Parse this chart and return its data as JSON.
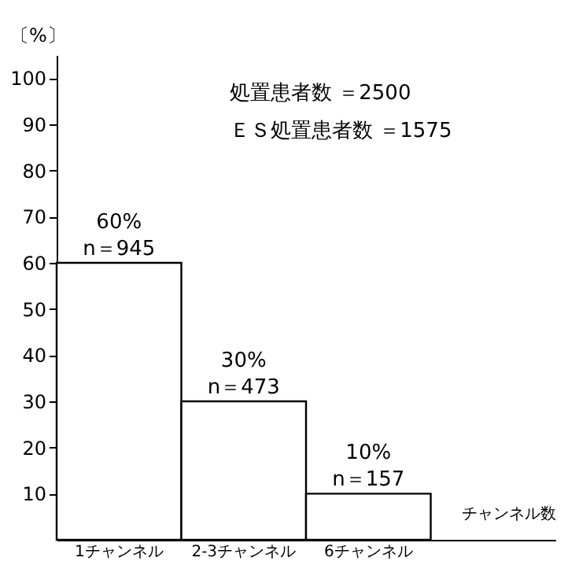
{
  "chart_data": {
    "type": "bar",
    "xlabel": "チャンネル数",
    "ylabel": "〔%〕",
    "categories": [
      "1チャンネル",
      "2-3チャンネル",
      "6チャンネル"
    ],
    "values": [
      60,
      30,
      10
    ],
    "color": "#ffffff",
    "value_labels": [
      "60%",
      "30%",
      "10%"
    ],
    "ylim": [
      0,
      105
    ],
    "yticks": [
      10,
      20,
      30,
      40,
      50,
      60,
      70,
      80,
      90,
      100
    ],
    "grid": false,
    "annotations": [
      "処置患者数 ＝2500",
      "ＥＳ処置患者数 ＝1575",
      {
        "text": "n＝945",
        "x": "1チャンネル",
        "y": 60
      },
      {
        "text": "n＝473",
        "x": "2-3チャンネル",
        "y": 30
      },
      {
        "text": "n＝157",
        "x": "6チャンネル",
        "y": 10
      }
    ]
  }
}
